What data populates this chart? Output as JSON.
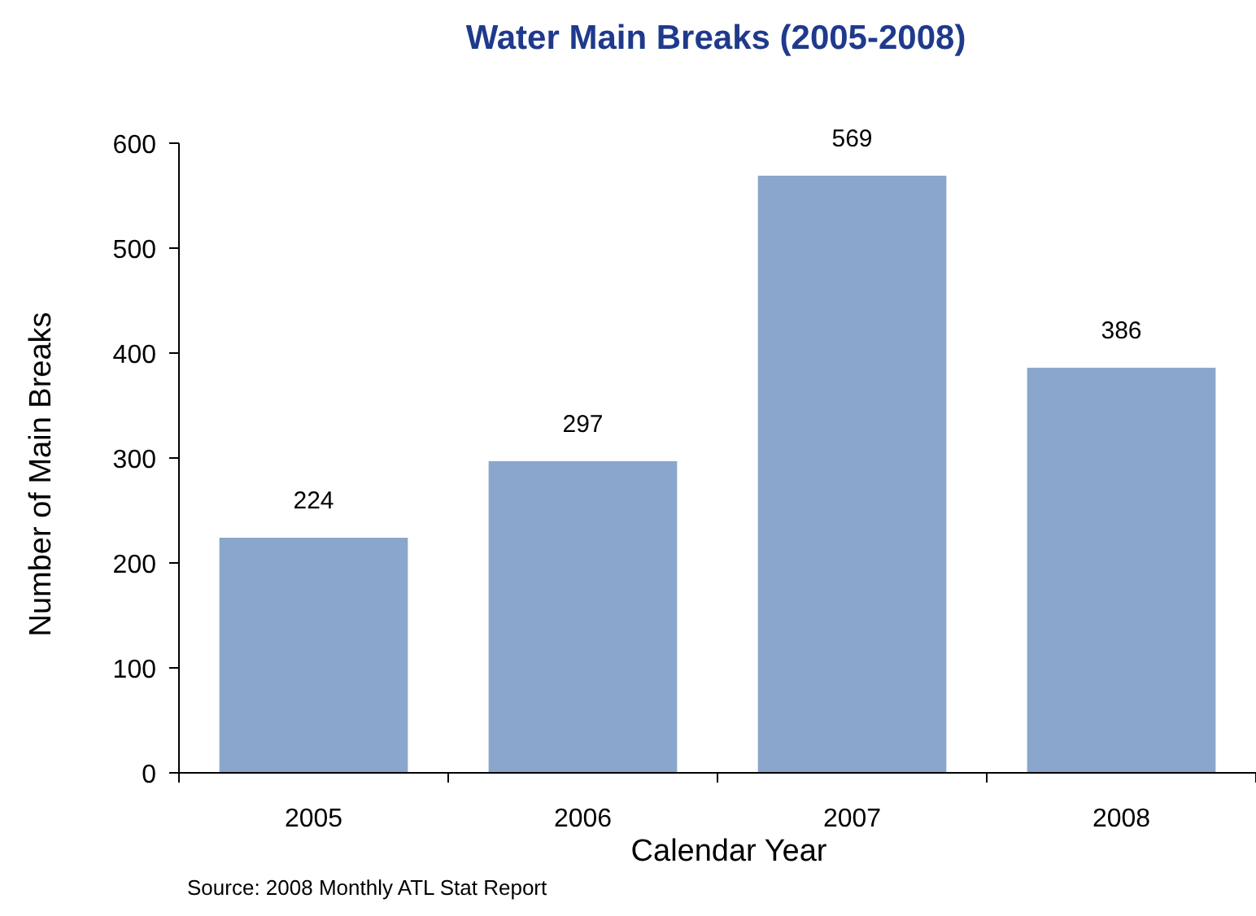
{
  "chart_data": {
    "type": "bar",
    "title": "Water Main Breaks (2005-2008)",
    "xlabel": "Calendar Year",
    "ylabel": "Number of Main Breaks",
    "categories": [
      "2005",
      "2006",
      "2007",
      "2008"
    ],
    "values": [
      224,
      297,
      569,
      386
    ],
    "color": "#8aa6cc",
    "data_labels": true,
    "ylim": [
      0,
      600
    ],
    "yticks": [
      0,
      100,
      200,
      300,
      400,
      500,
      600
    ],
    "grid": false,
    "annotations": [
      "Source: 2008 Monthly ATL Stat Report"
    ]
  }
}
